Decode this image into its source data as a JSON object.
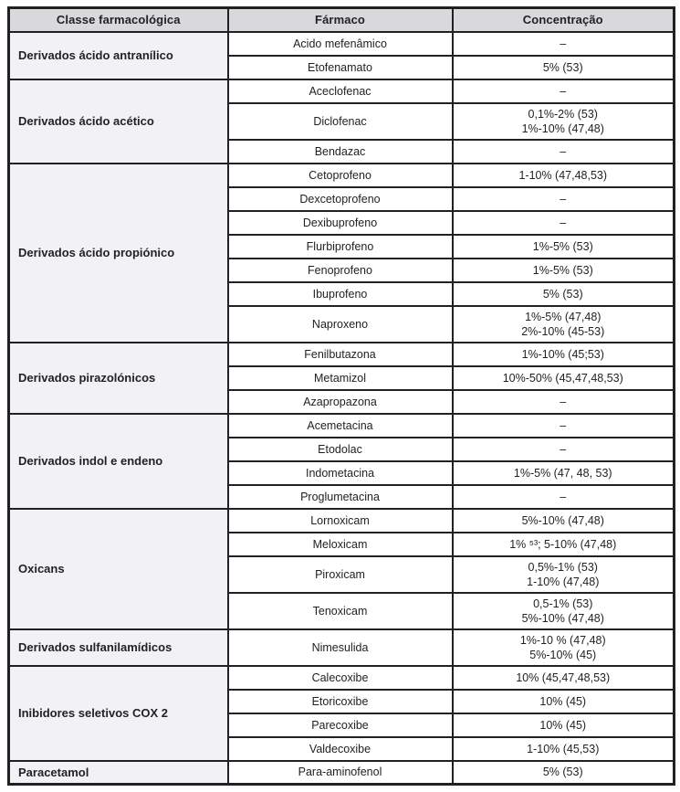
{
  "table": {
    "headers": [
      "Classe farmacológica",
      "Fármaco",
      "Concentração"
    ],
    "empty_marker": "–",
    "groups": [
      {
        "class": "Derivados ácido antranílico",
        "drugs": [
          {
            "name": "Acido mefenâmico",
            "conc": [
              "–"
            ]
          },
          {
            "name": "Etofenamato",
            "conc": [
              "5% (53)"
            ]
          }
        ]
      },
      {
        "class": "Derivados ácido acético",
        "drugs": [
          {
            "name": "Aceclofenac",
            "conc": [
              "–"
            ]
          },
          {
            "name": "Diclofenac",
            "conc": [
              "0,1%-2% (53)",
              "1%-10% (47,48)"
            ]
          },
          {
            "name": "Bendazac",
            "conc": [
              "–"
            ]
          }
        ]
      },
      {
        "class": "Derivados ácido propiónico",
        "drugs": [
          {
            "name": "Cetoprofeno",
            "conc": [
              "1-10% (47,48,53)"
            ]
          },
          {
            "name": "Dexcetoprofeno",
            "conc": [
              "–"
            ]
          },
          {
            "name": "Dexibuprofeno",
            "conc": [
              "–"
            ]
          },
          {
            "name": "Flurbiprofeno",
            "conc": [
              "1%-5% (53)"
            ]
          },
          {
            "name": "Fenoprofeno",
            "conc": [
              "1%-5% (53)"
            ]
          },
          {
            "name": "Ibuprofeno",
            "conc": [
              "5% (53)"
            ]
          },
          {
            "name": "Naproxeno",
            "conc": [
              "1%-5% (47,48)",
              "2%-10% (45-53)"
            ]
          }
        ]
      },
      {
        "class": "Derivados pirazolónicos",
        "drugs": [
          {
            "name": "Fenilbutazona",
            "conc": [
              "1%-10% (45;53)"
            ]
          },
          {
            "name": "Metamizol",
            "conc": [
              "10%-50% (45,47,48,53)"
            ]
          },
          {
            "name": "Azapropazona",
            "conc": [
              "–"
            ]
          }
        ]
      },
      {
        "class": "Derivados indol e endeno",
        "drugs": [
          {
            "name": "Acemetacina",
            "conc": [
              "–"
            ]
          },
          {
            "name": "Etodolac",
            "conc": [
              "–"
            ]
          },
          {
            "name": "Indometacina",
            "conc": [
              "1%-5% (47, 48, 53)"
            ]
          },
          {
            "name": "Proglumetacina",
            "conc": [
              "–"
            ]
          }
        ]
      },
      {
        "class": "Oxicans",
        "drugs": [
          {
            "name": "Lornoxicam",
            "conc": [
              "5%-10% (47,48)"
            ]
          },
          {
            "name": "Meloxicam",
            "conc": [
              "1% ⁵³; 5-10% (47,48)"
            ]
          },
          {
            "name": "Piroxicam",
            "conc": [
              "0,5%-1% (53)",
              "1-10% (47,48)"
            ]
          },
          {
            "name": "Tenoxicam",
            "conc": [
              "0,5-1% (53)",
              "5%-10% (47,48)"
            ]
          }
        ]
      },
      {
        "class": "Derivados sulfanilamídicos",
        "drugs": [
          {
            "name": "Nimesulida",
            "conc": [
              "1%-10 % (47,48)",
              "5%-10% (45)"
            ]
          }
        ]
      },
      {
        "class": "Inibidores seletivos COX 2",
        "drugs": [
          {
            "name": "Calecoxibe",
            "conc": [
              "10% (45,47,48,53)"
            ]
          },
          {
            "name": "Etoricoxibe",
            "conc": [
              "10% (45)"
            ]
          },
          {
            "name": "Parecoxibe",
            "conc": [
              "10% (45)"
            ]
          },
          {
            "name": "Valdecoxibe",
            "conc": [
              "1-10% (45,53)"
            ]
          }
        ]
      },
      {
        "class": "Paracetamol",
        "drugs": [
          {
            "name": "Para-aminofenol",
            "conc": [
              "5% (53)"
            ]
          }
        ]
      }
    ]
  },
  "colors": {
    "header_bg": "#d9d9db",
    "class_col_bg": "#f2f2f4",
    "body_bg": "#ffffff",
    "border": "#222024",
    "text": "#232125"
  }
}
